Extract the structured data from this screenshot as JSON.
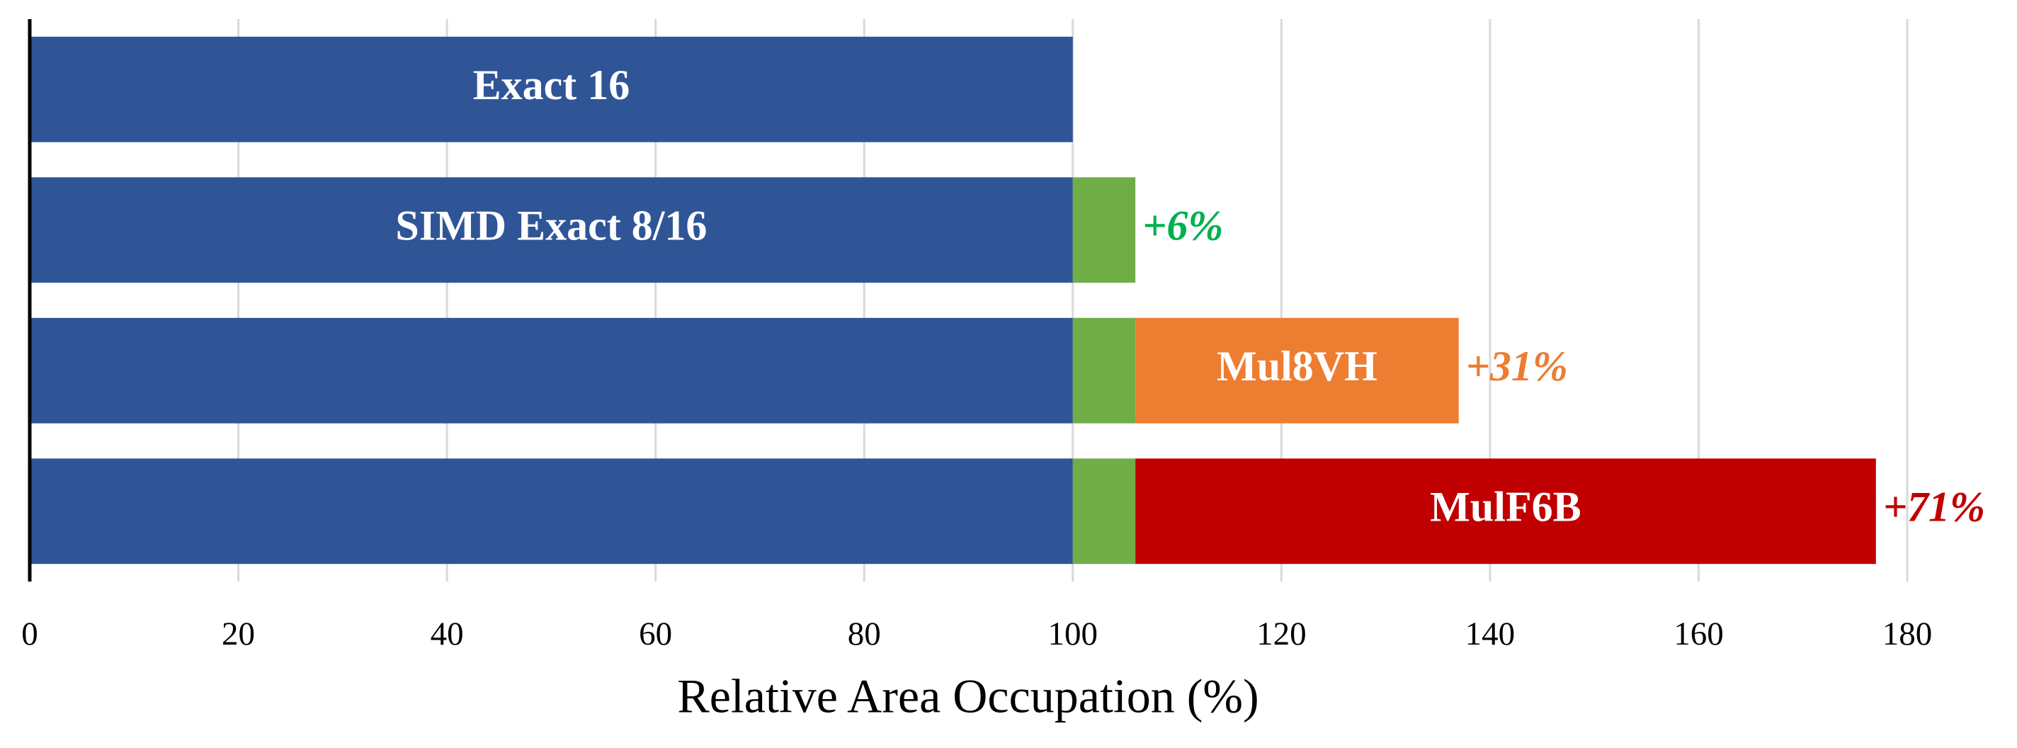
{
  "chart_data": {
    "type": "stacked-barh",
    "categories": [
      null,
      null,
      null,
      null
    ],
    "series": [
      {
        "color": "#2f5597",
        "values": [
          100,
          100,
          100,
          100
        ],
        "labels": [
          "Exact 16",
          "SIMD Exact 8/16",
          null,
          null
        ]
      },
      {
        "color": "#70ad47",
        "label_color": "#00b050",
        "values": [
          null,
          6,
          6,
          6
        ],
        "value_labels": [
          null,
          "+6%",
          null,
          null
        ]
      },
      {
        "color": "#ed7d31",
        "label_color": "#ed7d31",
        "values": [
          null,
          null,
          31,
          null
        ],
        "labels": [
          null,
          null,
          "Mul8VH",
          null
        ],
        "value_labels": [
          null,
          null,
          "+31%",
          null
        ]
      },
      {
        "color": "#c00000",
        "label_color": "#c00000",
        "values": [
          null,
          null,
          null,
          71
        ],
        "labels": [
          null,
          null,
          null,
          "MulF6B"
        ],
        "value_labels": [
          null,
          null,
          null,
          "+71%"
        ]
      }
    ],
    "xlabel": "Relative Area Occupation (%)",
    "xlim": [
      0,
      180
    ],
    "xticks": [
      0,
      20,
      40,
      60,
      80,
      100,
      120,
      140,
      160,
      180
    ],
    "grid": true
  }
}
